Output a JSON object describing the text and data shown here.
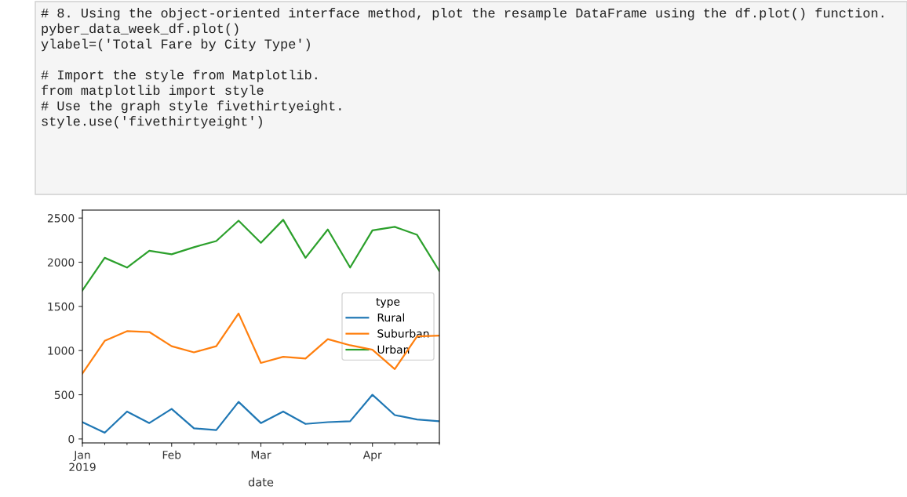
{
  "chart_data": {
    "type": "line",
    "annotations": [
      "# 8. Using the object-oriented interface method, plot the resample DataFrame using the df.plot() function.\npyber_data_week_df.plot()\nylabel=('Total Fare by City Type')\n\n# Import the style from Matplotlib.\nfrom matplotlib import style\n# Use the graph style fivethirtyeight.\nstyle.use('fivethirtyeight')"
    ],
    "x": [
      "2019-01-06",
      "2019-01-13",
      "2019-01-20",
      "2019-01-27",
      "2019-02-03",
      "2019-02-10",
      "2019-02-17",
      "2019-02-24",
      "2019-03-03",
      "2019-03-10",
      "2019-03-17",
      "2019-03-24",
      "2019-03-31",
      "2019-04-07",
      "2019-04-14",
      "2019-04-21",
      "2019-04-28"
    ],
    "series": [
      {
        "name": "Rural",
        "color": "#1f77b4",
        "values": [
          190,
          70,
          310,
          180,
          340,
          120,
          100,
          420,
          180,
          310,
          170,
          190,
          200,
          500,
          270,
          220,
          200
        ]
      },
      {
        "name": "Suburban",
        "color": "#ff7f0e",
        "values": [
          740,
          1110,
          1220,
          1210,
          1050,
          980,
          1050,
          1420,
          860,
          930,
          910,
          1130,
          1060,
          1010,
          790,
          1160,
          1170
        ]
      },
      {
        "name": "Urban",
        "color": "#2ca02c",
        "values": [
          1680,
          2050,
          1940,
          2130,
          2090,
          2170,
          2240,
          2470,
          2220,
          2480,
          2050,
          2370,
          1940,
          2360,
          2400,
          2310,
          1900
        ]
      }
    ],
    "xlabel": "date",
    "legend_title": "type",
    "legend": "center right",
    "xlim": [
      "2019-01-06",
      "2019-04-28"
    ],
    "xticks": [
      {
        "value": "2019-01-06",
        "label": "Jan\n2019"
      },
      {
        "value": "2019-01-13",
        "label": null
      },
      {
        "value": "2019-01-20",
        "label": null
      },
      {
        "value": "2019-01-27",
        "label": null
      },
      {
        "value": "2019-02-03",
        "label": "Feb"
      },
      {
        "value": "2019-02-10",
        "label": null
      },
      {
        "value": "2019-02-17",
        "label": null
      },
      {
        "value": "2019-02-24",
        "label": null
      },
      {
        "value": "2019-03-03",
        "label": "Mar"
      },
      {
        "value": "2019-03-10",
        "label": null
      },
      {
        "value": "2019-03-17",
        "label": null
      },
      {
        "value": "2019-03-24",
        "label": null
      },
      {
        "value": "2019-03-31",
        "label": null
      },
      {
        "value": "2019-04-07",
        "label": "Apr"
      },
      {
        "value": "2019-04-14",
        "label": null
      },
      {
        "value": "2019-04-21",
        "label": null
      },
      {
        "value": "2019-04-28",
        "label": null
      }
    ],
    "ylim": [
      -45,
      2590
    ],
    "yticks": [
      0,
      500,
      1000,
      1500,
      2000,
      2500
    ],
    "grid": false,
    "marker": "none",
    "line_style": "solid"
  }
}
